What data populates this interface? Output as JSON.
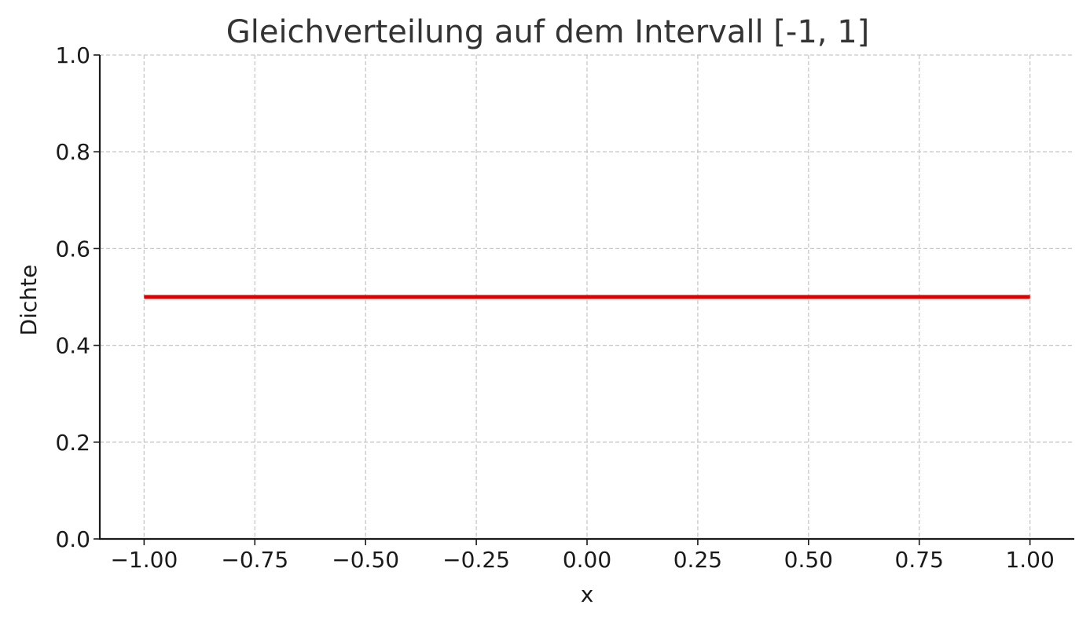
{
  "chart_data": {
    "type": "line",
    "title": "Gleichverteilung auf dem Intervall [-1, 1]",
    "xlabel": "x",
    "ylabel": "Dichte",
    "xlim": [
      -1.1,
      1.1
    ],
    "ylim": [
      0.0,
      1.0
    ],
    "xticks": [
      -1.0,
      -0.75,
      -0.5,
      -0.25,
      0.0,
      0.25,
      0.5,
      0.75,
      1.0
    ],
    "xtick_labels": [
      "−1.00",
      "−0.75",
      "−0.50",
      "−0.25",
      "0.00",
      "0.25",
      "0.50",
      "0.75",
      "1.00"
    ],
    "yticks": [
      0.0,
      0.2,
      0.4,
      0.6,
      0.8,
      1.0
    ],
    "ytick_labels": [
      "0.0",
      "0.2",
      "0.4",
      "0.6",
      "0.8",
      "1.0"
    ],
    "grid": true,
    "series": [
      {
        "color": "#e00000",
        "x": [
          -1.0,
          1.0
        ],
        "y": [
          0.5,
          0.5
        ]
      }
    ]
  }
}
